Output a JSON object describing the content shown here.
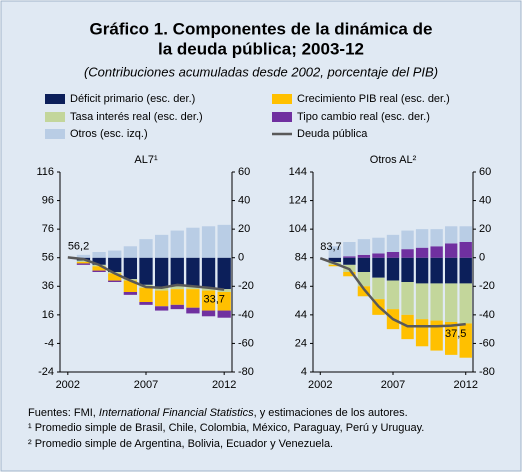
{
  "header": {
    "title": [
      "Gráfico 1. Componentes de la dinámica de",
      "la deuda pública; 2003-12"
    ],
    "subtitle": "(Contribuciones acumuladas desde 2002, porcentaje del PIB)"
  },
  "chart_data": [
    {
      "type": "bar",
      "title": "AL7¹",
      "x": [
        2002,
        2003,
        2004,
        2005,
        2006,
        2007,
        2008,
        2009,
        2010,
        2011,
        2012
      ],
      "xlim": [
        2001.5,
        2012.5
      ],
      "xticks": [
        2002,
        2007,
        2012
      ],
      "ylim": [
        -24,
        116
      ],
      "yticks": [
        -24,
        -4,
        16,
        36,
        56,
        76,
        96,
        116
      ],
      "y2lim": [
        -80,
        60
      ],
      "y2ticks": [
        -80,
        -60,
        -40,
        -20,
        0,
        20,
        40,
        60
      ],
      "series": [
        {
          "name": "Déficit primario (esc. der.)",
          "color": "#0c1f5a",
          "axis": "y2",
          "values": [
            null,
            -2,
            -5,
            -10,
            -15,
            -19,
            -21,
            -20,
            -20,
            -21,
            -22
          ]
        },
        {
          "name": "Tasa interés real (esc. der.)",
          "color": "#c3d69b",
          "axis": "y2",
          "values": [
            null,
            -1,
            -1,
            -1,
            -1,
            -2,
            -2,
            -2,
            -2,
            -2,
            -2
          ]
        },
        {
          "name": "Crecimiento PIB real (esc. der.)",
          "color": "#ffc000",
          "axis": "y2",
          "values": [
            null,
            -1,
            -3,
            -5,
            -8,
            -10,
            -11,
            -11,
            -13,
            -14,
            -13
          ]
        },
        {
          "name": "Tipo cambio real (esc. der.)",
          "color": "#7030a0",
          "axis": "y2",
          "values": [
            null,
            -1,
            -1,
            -1,
            -2,
            -2,
            -3,
            -3,
            -4,
            -4,
            -5
          ]
        },
        {
          "name": "Otros (esc. izq.)",
          "color": "#b9cde5",
          "axis": "y2",
          "values": [
            null,
            2,
            4,
            5,
            8,
            13,
            16,
            19,
            21,
            22,
            23
          ]
        },
        {
          "name": "Deuda pública",
          "color": "#595959",
          "type": "line",
          "values": [
            56.2,
            55,
            51,
            45,
            40,
            35.5,
            35,
            37,
            36,
            35,
            33.7
          ],
          "value_labels": [
            "56,2",
            null,
            null,
            null,
            null,
            null,
            null,
            null,
            null,
            null,
            "33,7"
          ]
        }
      ]
    },
    {
      "type": "bar",
      "title": "Otros AL²",
      "x": [
        2002,
        2003,
        2004,
        2005,
        2006,
        2007,
        2008,
        2009,
        2010,
        2011,
        2012
      ],
      "xlim": [
        2001.5,
        2012.5
      ],
      "xticks": [
        2002,
        2007,
        2012
      ],
      "ylim": [
        4,
        144
      ],
      "yticks": [
        4,
        24,
        44,
        64,
        84,
        104,
        124,
        144
      ],
      "y2lim": [
        -80,
        60
      ],
      "y2ticks": [
        -80,
        -60,
        -40,
        -20,
        0,
        20,
        40,
        60
      ],
      "series": [
        {
          "color": "#0c1f5a",
          "axis": "y2",
          "values": [
            null,
            -3,
            -5,
            -10,
            -14,
            -16,
            -17,
            -18,
            -18,
            -18,
            -18
          ]
        },
        {
          "color": "#c3d69b",
          "axis": "y2",
          "values": [
            null,
            -2,
            -5,
            -10,
            -15,
            -20,
            -23,
            -25,
            -26,
            -27,
            -28
          ]
        },
        {
          "color": "#ffc000",
          "axis": "y2",
          "values": [
            null,
            -1,
            -3,
            -7,
            -11,
            -14,
            -17,
            -19,
            -21,
            -23,
            -24
          ]
        },
        {
          "color": "#7030a0",
          "axis": "y2",
          "values": [
            null,
            0,
            1,
            2,
            3,
            4,
            6,
            7,
            8,
            10,
            11
          ]
        },
        {
          "color": "#b9cde5",
          "axis": "y2",
          "values": [
            null,
            8,
            10,
            11,
            11,
            12,
            13,
            13,
            12,
            12,
            11
          ]
        },
        {
          "color": "#595959",
          "type": "line",
          "values": [
            83.7,
            80,
            76,
            62,
            50,
            41,
            36,
            36,
            36,
            36.5,
            37.5
          ],
          "value_labels": [
            "83,7",
            null,
            null,
            null,
            null,
            null,
            null,
            null,
            null,
            null,
            "37,5"
          ]
        }
      ]
    }
  ],
  "notes": {
    "source_prefix": "Fuentes: FMI, ",
    "source_italic": "International Financial Statistics",
    "source_suffix": ", y estimaciones de los autores.",
    "note1": "¹ Promedio simple de Brasil, Chile, Colombia, México, Paraguay, Perú y Uruguay.",
    "note2": "² Promedio simple de Argentina, Bolivia, Ecuador y Venezuela."
  }
}
